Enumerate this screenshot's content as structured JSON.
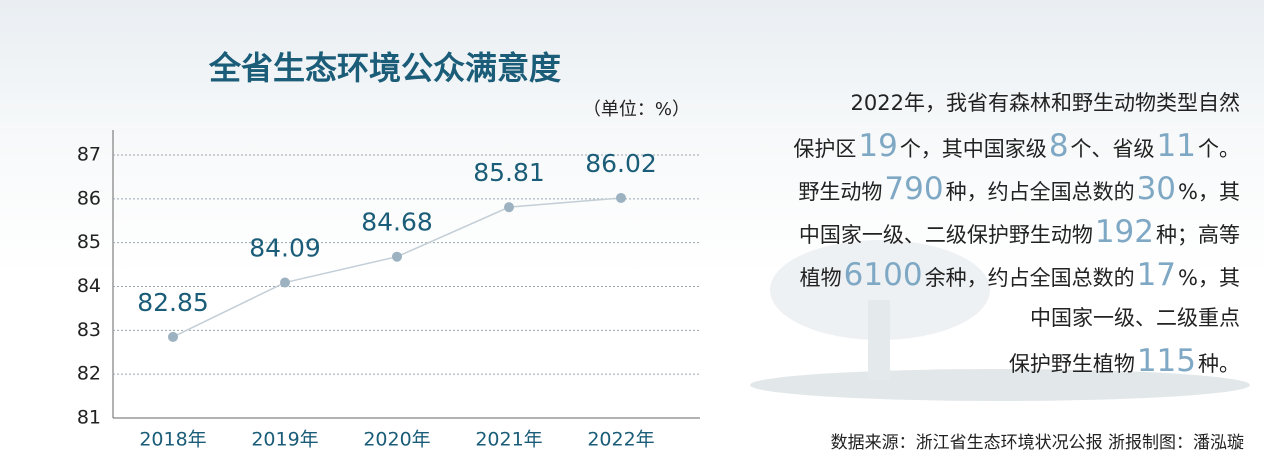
{
  "chart_data": {
    "type": "line",
    "title": "全省生态环境公众满意度",
    "unit": "（单位：%）",
    "categories": [
      "2018年",
      "2019年",
      "2020年",
      "2021年",
      "2022年"
    ],
    "values": [
      82.85,
      84.09,
      84.68,
      85.81,
      86.02
    ],
    "color": "#c3ced6",
    "point_color": "#9db2c1",
    "ylim": [
      81,
      87
    ],
    "yticks": [
      81,
      82,
      83,
      84,
      85,
      86,
      87
    ],
    "grid": true
  },
  "description": {
    "lines": [
      [
        "2022年，我省有森林和野生动物类型自然"
      ],
      [
        "保护区",
        19,
        "个，其中国家级",
        8,
        "个、省级",
        11,
        "个。"
      ],
      [
        "野生动物",
        790,
        "种，约占全国总数的",
        30,
        "%，其"
      ],
      [
        "中国家一级、二级保护野生动物",
        192,
        "种；高等"
      ],
      [
        "植物",
        6100,
        "余种，约占全国总数的",
        17,
        "%，其"
      ],
      [
        "中国家一级、二级重点"
      ],
      [
        "保护野生植物",
        115,
        "种。"
      ]
    ]
  },
  "source": "数据来源：浙江省生态环境状况公报  浙报制图：潘泓璇"
}
